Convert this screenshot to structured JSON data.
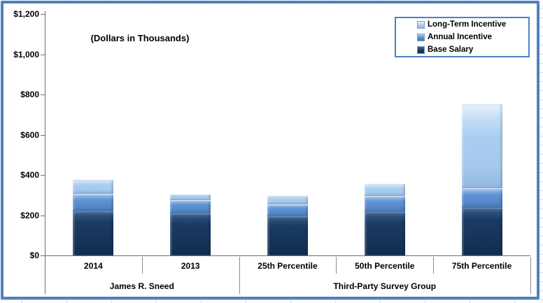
{
  "chart_data": {
    "type": "bar",
    "stacked": true,
    "title": "(Dollars in Thousands)",
    "categories": [
      "2014",
      "2013",
      "25th Percentile",
      "50th Percentile",
      "75th Percentile"
    ],
    "category_groups": [
      {
        "label": "James R. Sneed",
        "span": [
          0,
          1
        ]
      },
      {
        "label": "Third-Party Survey Group",
        "span": [
          2,
          4
        ]
      }
    ],
    "series": [
      {
        "name": "Base Salary",
        "color": "#17375E",
        "values": [
          220,
          210,
          195,
          215,
          235
        ]
      },
      {
        "name": "Annual Incentive",
        "color": "#558ED5",
        "values": [
          85,
          65,
          60,
          80,
          100
        ]
      },
      {
        "name": "Long-Term Incentive",
        "color": "#A7CDF0",
        "values": [
          75,
          30,
          45,
          65,
          420
        ]
      }
    ],
    "totals": [
      380,
      305,
      300,
      360,
      755
    ],
    "ylim": [
      0,
      1200
    ],
    "ytick_interval": 200,
    "ytick_labels": [
      "$0",
      "$200",
      "$400",
      "$600",
      "$800",
      "$1,000",
      "$1,200"
    ],
    "legend_position": "top-right",
    "legend_order": [
      "Long-Term Incentive",
      "Annual Incentive",
      "Base Salary"
    ],
    "grid": false,
    "frame_color": "#4F81BD",
    "axis_color": "#6E6E6E"
  }
}
